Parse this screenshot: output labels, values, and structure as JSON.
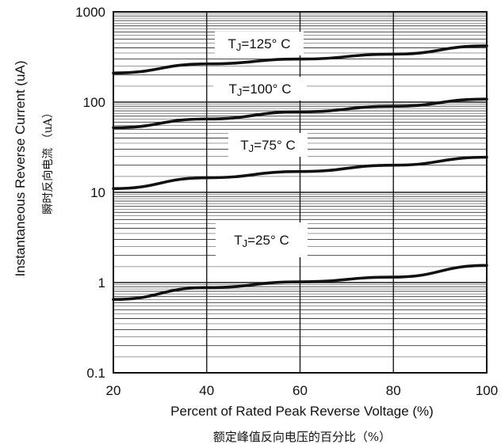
{
  "chart_data": {
    "type": "line",
    "title": "",
    "xlabel": "Percent of Rated Peak Reverse Voltage (%)",
    "xlabel_secondary": "额定峰值反向电压的百分比（%）",
    "ylabel": "Instantaneous Reverse Current (uA)",
    "ylabel_secondary": "瞬时反向电流 （uA）",
    "xlim": [
      20,
      100
    ],
    "ylim": [
      0.1,
      1000
    ],
    "yscale": "log",
    "grid": true,
    "x_ticks": [
      "20",
      "40",
      "60",
      "80",
      "100"
    ],
    "y_ticks": [
      "0.1",
      "1",
      "10",
      "100",
      "1000"
    ],
    "x": [
      20,
      40,
      60,
      80,
      100
    ],
    "series": [
      {
        "name": "TJ=125° C",
        "label_prefix": "T",
        "label_sub": "J",
        "label_rest": "=125° C",
        "values": [
          210,
          265,
          300,
          340,
          420
        ]
      },
      {
        "name": "TJ=100° C",
        "label_prefix": "T",
        "label_sub": "J",
        "label_rest": "=100° C",
        "values": [
          52,
          65,
          78,
          90,
          108
        ]
      },
      {
        "name": "TJ=75° C",
        "label_prefix": "T",
        "label_sub": "J",
        "label_rest": "=75° C",
        "values": [
          11,
          14.5,
          17,
          20,
          24.5
        ]
      },
      {
        "name": "TJ=25° C",
        "label_prefix": "T",
        "label_sub": "J",
        "label_rest": "=25° C",
        "values": [
          0.65,
          0.88,
          1.02,
          1.15,
          1.55
        ]
      }
    ]
  },
  "colors": {
    "line": "#111111",
    "grid_major": "#1a1a1a",
    "grid_minor": "#333333",
    "background": "#ffffff"
  }
}
